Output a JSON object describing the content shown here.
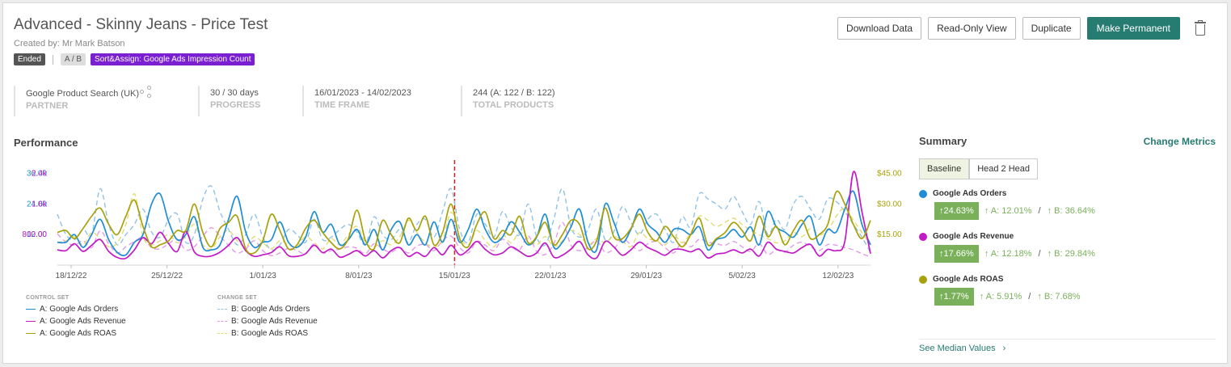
{
  "header": {
    "title": "Advanced - Skinny Jeans - Price Test",
    "created_by": "Created by: Mr Mark Batson",
    "badges": {
      "status": "Ended",
      "type": "A / B",
      "sort": "Sort&Assign: Google Ads Impression Count"
    }
  },
  "toolbar": {
    "download": "Download Data",
    "readonly": "Read-Only View",
    "duplicate": "Duplicate",
    "make_permanent": "Make Permanent"
  },
  "info": {
    "partner_value": "Google Product Search (UK)",
    "partner_label": "PARTNER",
    "progress_value": "30 / 30 days",
    "progress_label": "PROGRESS",
    "timeframe_value": "16/01/2023 - 14/02/2023",
    "timeframe_label": "TIME FRAME",
    "products_value": "244 (A: 122 / B: 122)",
    "products_label": "TOTAL PRODUCTS"
  },
  "performance": {
    "title": "Performance",
    "legend": {
      "control_heading": "CONTROL SET",
      "change_heading": "CHANGE SET",
      "control": [
        "A: Google Ads Orders",
        "A: Google Ads Revenue",
        "A: Google Ads ROAS"
      ],
      "change": [
        "B: Google Ads Orders",
        "B: Google Ads Revenue",
        "B: Google Ads ROAS"
      ]
    }
  },
  "chart_data": {
    "type": "line",
    "x_ticks": [
      "18/12/22",
      "25/12/22",
      "1/01/23",
      "8/01/23",
      "15/01/23",
      "22/01/23",
      "29/01/23",
      "5/02/23",
      "12/02/23"
    ],
    "y_axis_orders": [
      "36.00",
      "24.00",
      "12.00"
    ],
    "y_axis_revenue": [
      "2.4k",
      "1.6k",
      "800.00"
    ],
    "y_axis_roas": [
      "$45.00",
      "$30.00",
      "$15.00"
    ],
    "start_marker": "15/01/23",
    "colors": {
      "orders": "#1f8dd6",
      "revenue": "#c21ac7",
      "roas": "#a9a10a",
      "marker": "#e0201b"
    },
    "series": [
      {
        "name": "A: Google Ads Orders",
        "axis": "orders",
        "values": [
          9,
          9,
          12,
          7,
          12,
          18,
          10,
          5,
          4,
          9,
          12,
          24,
          28,
          17,
          10,
          12,
          19,
          7,
          6,
          8,
          18,
          27,
          13,
          7,
          9,
          10,
          17,
          9,
          7,
          11,
          21,
          13,
          16,
          8,
          10,
          14,
          8,
          14,
          6,
          14,
          17,
          8,
          12,
          8,
          17,
          9,
          18,
          9,
          14,
          22,
          14,
          9,
          11,
          17,
          13,
          8,
          11,
          20,
          7,
          9,
          15,
          22,
          9,
          6,
          24,
          17,
          9,
          14,
          22,
          16,
          13,
          9,
          14,
          14,
          12,
          15,
          6,
          10,
          11,
          14,
          11,
          15,
          8,
          21,
          15,
          13,
          11,
          16,
          19,
          8,
          14,
          13,
          22,
          29,
          16,
          8
        ]
      },
      {
        "name": "A: Google Ads Revenue",
        "axis": "revenue",
        "values": [
          400,
          380,
          560,
          360,
          520,
          670,
          360,
          200,
          180,
          400,
          720,
          560,
          860,
          560,
          360,
          880,
          350,
          230,
          240,
          340,
          520,
          720,
          380,
          230,
          270,
          330,
          480,
          250,
          230,
          300,
          520,
          330,
          420,
          210,
          280,
          380,
          240,
          380,
          190,
          380,
          460,
          230,
          330,
          230,
          460,
          270,
          520,
          270,
          400,
          620,
          410,
          270,
          320,
          480,
          360,
          230,
          320,
          580,
          210,
          260,
          420,
          620,
          270,
          190,
          620,
          480,
          260,
          400,
          600,
          460,
          360,
          260,
          410,
          410,
          350,
          420,
          190,
          290,
          320,
          400,
          320,
          420,
          240,
          600,
          420,
          360,
          320,
          460,
          540,
          240,
          410,
          380,
          620,
          2440,
          1400,
          300
        ]
      },
      {
        "name": "A: Google Ads ROAS",
        "axis": "roas",
        "values": [
          16,
          17,
          13,
          18,
          24,
          28,
          20,
          15,
          24,
          32,
          19,
          9,
          10,
          12,
          17,
          17,
          30,
          16,
          9,
          18,
          21,
          24,
          8,
          6,
          12,
          25,
          17,
          8,
          10,
          18,
          22,
          16,
          11,
          8,
          13,
          27,
          12,
          8,
          22,
          15,
          11,
          23,
          17,
          24,
          10,
          16,
          30,
          13,
          9,
          20,
          26,
          13,
          17,
          15,
          24,
          11,
          14,
          21,
          10,
          15,
          22,
          20,
          8,
          12,
          28,
          14,
          13,
          18,
          25,
          16,
          12,
          19,
          14,
          9,
          15,
          23,
          10,
          13,
          16,
          21,
          17,
          12,
          24,
          14,
          19,
          10,
          17,
          22,
          13,
          15,
          20,
          36,
          30,
          20,
          13,
          22
        ]
      },
      {
        "name": "B: Google Ads Orders",
        "axis": "orders",
        "values": [
          20,
          12,
          10,
          14,
          12,
          30,
          16,
          8,
          12,
          16,
          22,
          13,
          11,
          18,
          20,
          9,
          12,
          26,
          31,
          21,
          14,
          8,
          12,
          20,
          11,
          6,
          8,
          14,
          12,
          9,
          18,
          10,
          11,
          14,
          16,
          13,
          8,
          19,
          12,
          10,
          14,
          9,
          16,
          18,
          11,
          21,
          30,
          14,
          9,
          20,
          16,
          11,
          21,
          15,
          12,
          24,
          11,
          8,
          18,
          30,
          15,
          11,
          14,
          22,
          10,
          13,
          23,
          17,
          12,
          18,
          20,
          14,
          9,
          19,
          15,
          28,
          26,
          24,
          22,
          27,
          21,
          16,
          25,
          12,
          18,
          14,
          24,
          27,
          22,
          18,
          26,
          25,
          21,
          16,
          11,
          5
        ]
      },
      {
        "name": "B: Google Ads Revenue",
        "axis": "revenue",
        "values": [
          820,
          600,
          520,
          640,
          460,
          900,
          560,
          320,
          480,
          620,
          720,
          460,
          430,
          560,
          680,
          400,
          480,
          760,
          980,
          760,
          520,
          320,
          420,
          640,
          380,
          250,
          320,
          440,
          380,
          300,
          560,
          320,
          380,
          420,
          480,
          440,
          300,
          560,
          420,
          340,
          460,
          320,
          500,
          540,
          380,
          640,
          760,
          460,
          320,
          620,
          520,
          380,
          680,
          480,
          400,
          760,
          360,
          280,
          560,
          1120,
          520,
          380,
          460,
          640,
          340,
          420,
          680,
          540,
          380,
          560,
          620,
          460,
          320,
          600,
          480,
          680,
          600,
          560,
          520,
          620,
          480,
          360,
          560,
          280,
          400,
          340,
          520,
          600,
          480,
          380,
          540,
          520,
          460,
          400,
          300,
          220
        ]
      },
      {
        "name": "B: Google Ads ROAS",
        "axis": "roas",
        "values": [
          11,
          12,
          14,
          10,
          16,
          13,
          9,
          11,
          20,
          35,
          14,
          10,
          12,
          15,
          11,
          14,
          20,
          10,
          8,
          14,
          17,
          12,
          9,
          14,
          11,
          8,
          12,
          10,
          9,
          14,
          11,
          8,
          13,
          10,
          15,
          19,
          11,
          9,
          12,
          10,
          14,
          22,
          16,
          11,
          9,
          12,
          26,
          14,
          10,
          17,
          12,
          9,
          15,
          11,
          16,
          13,
          10,
          14,
          9,
          12,
          17,
          15,
          10,
          13,
          11,
          14,
          12,
          9,
          16,
          13,
          12,
          10,
          15,
          11,
          16,
          24,
          22,
          19,
          21,
          23,
          20,
          17,
          15,
          13,
          11,
          12,
          16,
          14,
          18,
          15,
          17,
          24,
          28,
          22,
          16,
          10
        ]
      }
    ]
  },
  "summary": {
    "title": "Summary",
    "change_metrics": "Change Metrics",
    "tabs": [
      "Baseline",
      "Head 2 Head"
    ],
    "metrics": [
      {
        "name": "Google Ads Orders",
        "color": "#1f8dd6",
        "change": "↑24.63%",
        "a": "↑ A: 12.01%",
        "sep": "/",
        "b": "↑ B: 36.64%"
      },
      {
        "name": "Google Ads Revenue",
        "color": "#c21ac7",
        "change": "↑17.66%",
        "a": "↑ A: 12.18%",
        "sep": "/",
        "b": "↑ B: 29.84%"
      },
      {
        "name": "Google Ads ROAS",
        "color": "#a9a10a",
        "change": "↑1.77%",
        "a": "↑ A: 5.91%",
        "sep": "/",
        "b": "↑ B: 7.68%"
      }
    ],
    "median_link": "See Median Values",
    "median_icon": "chevron-right-icon"
  }
}
